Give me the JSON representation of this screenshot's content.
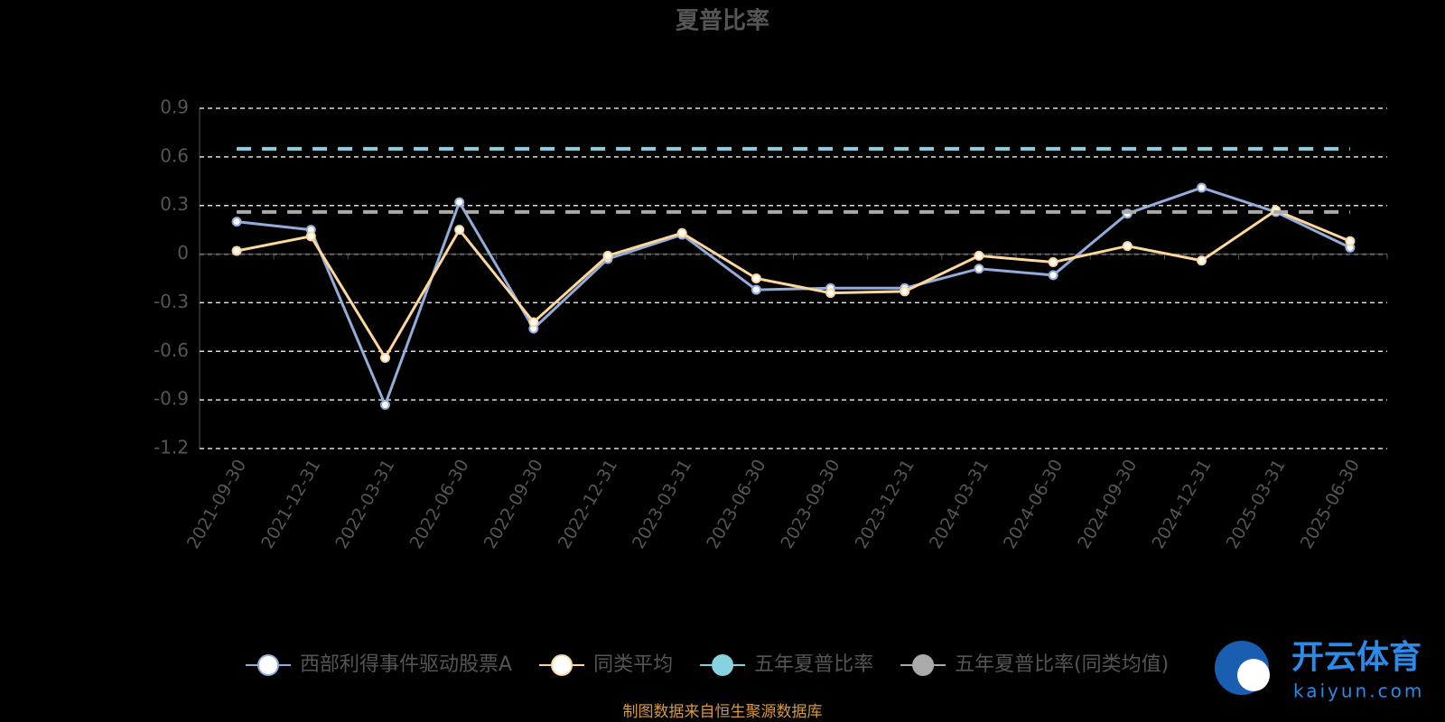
{
  "chart_data": {
    "type": "line",
    "title": "夏普比率",
    "categories": [
      "2021-09-30",
      "2021-12-31",
      "2022-03-31",
      "2022-06-30",
      "2022-09-30",
      "2022-12-31",
      "2023-03-31",
      "2023-06-30",
      "2023-09-30",
      "2023-12-31",
      "2024-03-31",
      "2024-06-30",
      "2024-09-30",
      "2024-12-31",
      "2025-03-31",
      "2025-06-30"
    ],
    "series": [
      {
        "name": "西部利得事件驱动股票A",
        "color": "#94acd9",
        "line_style": "solid",
        "markers": true,
        "values": [
          0.2,
          0.15,
          -0.93,
          0.32,
          -0.46,
          -0.03,
          0.12,
          -0.22,
          -0.21,
          -0.21,
          -0.09,
          -0.13,
          0.25,
          0.41,
          0.26,
          0.04
        ]
      },
      {
        "name": "同类平均",
        "color": "#fdd79b",
        "line_style": "solid",
        "markers": true,
        "values": [
          0.02,
          0.11,
          -0.64,
          0.15,
          -0.42,
          -0.01,
          0.13,
          -0.15,
          -0.24,
          -0.23,
          -0.01,
          -0.05,
          0.05,
          -0.04,
          0.27,
          0.08
        ]
      },
      {
        "name": "五年夏普比率",
        "color": "#86d3df",
        "line_style": "dashed",
        "markers": false,
        "values": [
          0.65,
          0.65,
          0.65,
          0.65,
          0.65,
          0.65,
          0.65,
          0.65,
          0.65,
          0.65,
          0.65,
          0.65,
          0.65,
          0.65,
          0.65,
          0.65
        ]
      },
      {
        "name": "五年夏普比率(同类均值)",
        "color": "#aaaaaa",
        "line_style": "dashed",
        "markers": false,
        "values": [
          0.26,
          0.26,
          0.26,
          0.26,
          0.26,
          0.26,
          0.26,
          0.26,
          0.26,
          0.26,
          0.26,
          0.26,
          0.26,
          0.26,
          0.26,
          0.26
        ]
      }
    ],
    "ylim": [
      -1.2,
      0.9
    ],
    "yticks": [
      -1.2,
      -0.9,
      -0.6,
      -0.3,
      0,
      0.3,
      0.6,
      0.9
    ],
    "grid": true,
    "legend": "bottom",
    "source": "制图数据来自恒生聚源数据库",
    "watermark": {
      "brand": "开云体育",
      "site": "kaiyun.com"
    }
  }
}
